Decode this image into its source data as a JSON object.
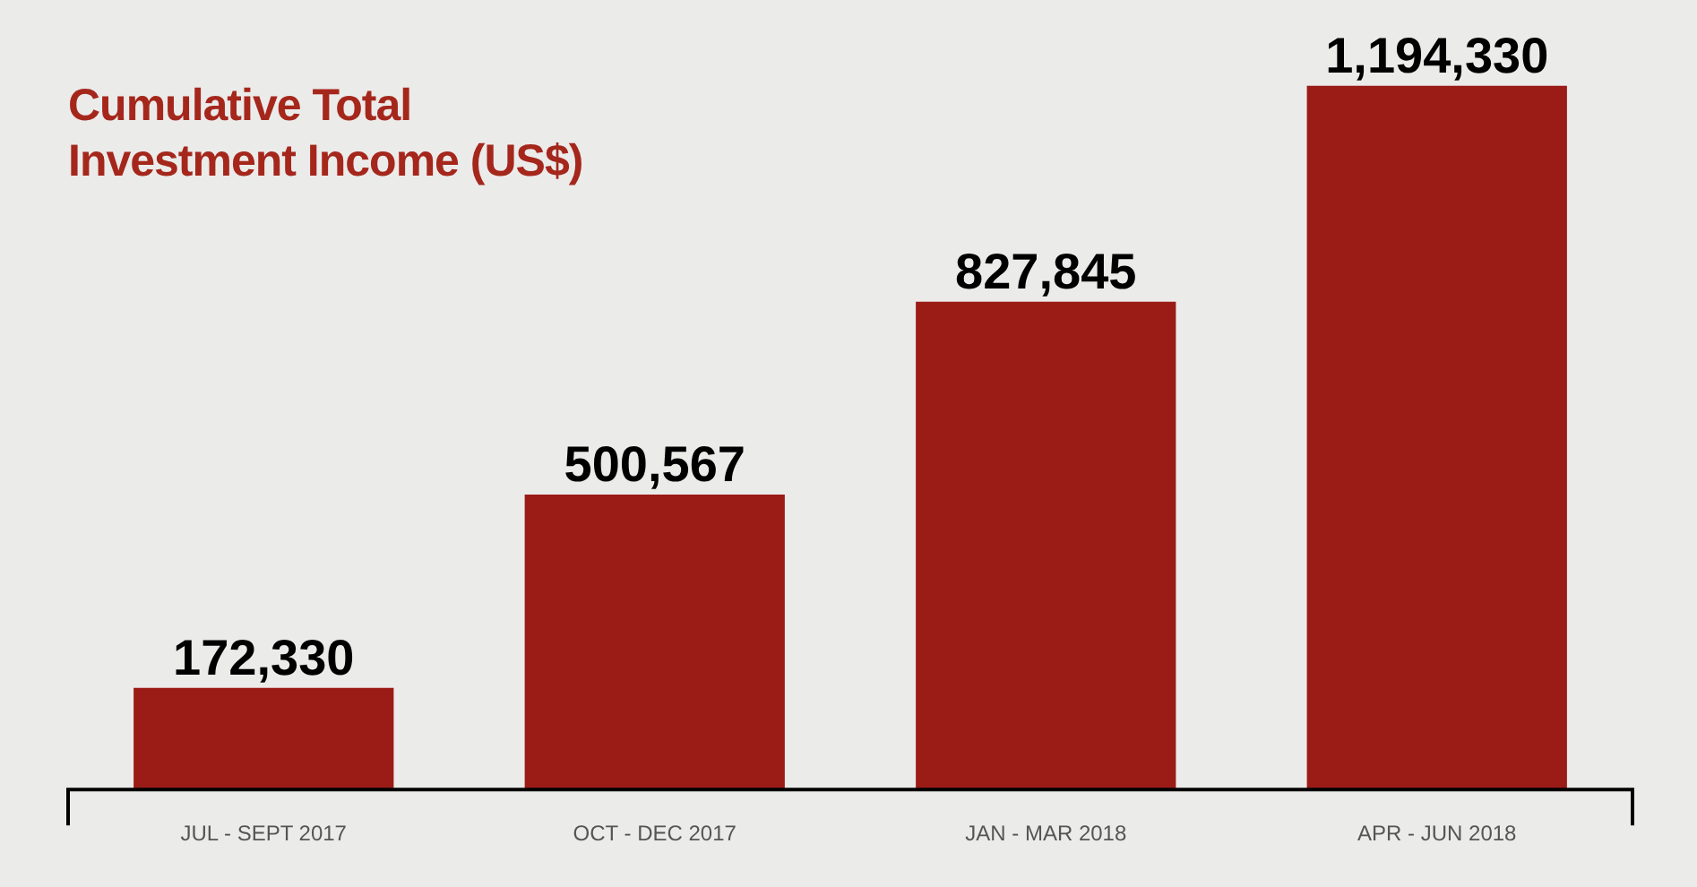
{
  "chart_data": {
    "type": "bar",
    "title": "Cumulative Total Investment Income (US$)",
    "categories": [
      "JUL - SEPT 2017",
      "OCT - DEC 2017",
      "JAN - MAR 2018",
      "APR - JUN 2018"
    ],
    "values": [
      172330,
      500567,
      827845,
      1194330
    ],
    "value_labels": [
      "172,330",
      "500,567",
      "827,845",
      "1,194,330"
    ],
    "color": "#9b1b16",
    "tick_labels": "x"
  }
}
